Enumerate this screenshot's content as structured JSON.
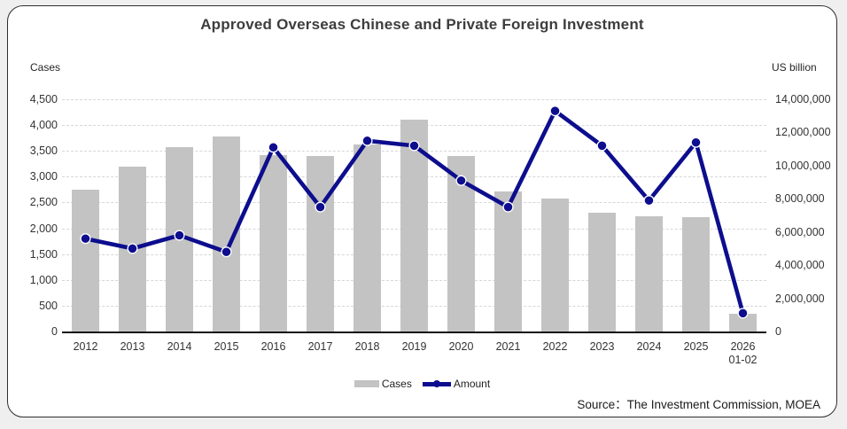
{
  "page": {
    "source": "Source：The Investment Commission, MOEA"
  },
  "colors": {
    "page_bg": "#efefef",
    "card_bg": "#ffffff",
    "card_border": "#2e2e2e",
    "title_text": "#3d3d3d",
    "bar": "#c3c3c3",
    "line": "#0d0d8e",
    "marker_ring": "#ffffff",
    "grid": "#d7d7d7",
    "axis_line": "#111111"
  },
  "chart_data": {
    "type": "combo-bar-line",
    "title": "Approved Overseas Chinese and Private Foreign Investment",
    "categories": [
      "2012",
      "2013",
      "2014",
      "2015",
      "2016",
      "2017",
      "2018",
      "2019",
      "2020",
      "2021",
      "2022",
      "2023",
      "2024",
      "2025",
      "2026\n01-02"
    ],
    "series": [
      {
        "name": "Cases",
        "type": "bar",
        "axis": "left",
        "color": "#c3c3c3",
        "values": [
          2750,
          3200,
          3580,
          3780,
          3420,
          3400,
          3620,
          4100,
          3400,
          2720,
          2570,
          2300,
          2230,
          2210,
          340
        ]
      },
      {
        "name": "Amount",
        "type": "line",
        "axis": "right",
        "color": "#0d0d8e",
        "values": [
          5600000,
          5000000,
          5800000,
          4800000,
          11100000,
          7500000,
          11500000,
          11200000,
          9100000,
          7500000,
          13300000,
          11200000,
          7900000,
          11400000,
          1100000
        ]
      }
    ],
    "left_axis": {
      "label": "Cases",
      "min": 0,
      "max": 4500,
      "tick_labels": [
        "0",
        "500",
        "1,000",
        "1,500",
        "2,000",
        "2,500",
        "3,000",
        "3,500",
        "4,000",
        "4,500"
      ]
    },
    "right_axis": {
      "label": "US billion",
      "min": 0,
      "max": 14000000,
      "tick_labels": [
        "0",
        "2,000,000",
        "4,000,000",
        "6,000,000",
        "8,000,000",
        "10,000,000",
        "12,000,000",
        "14,000,000"
      ]
    },
    "grid": "horizontal-dashed",
    "legend_position": "bottom-center"
  }
}
